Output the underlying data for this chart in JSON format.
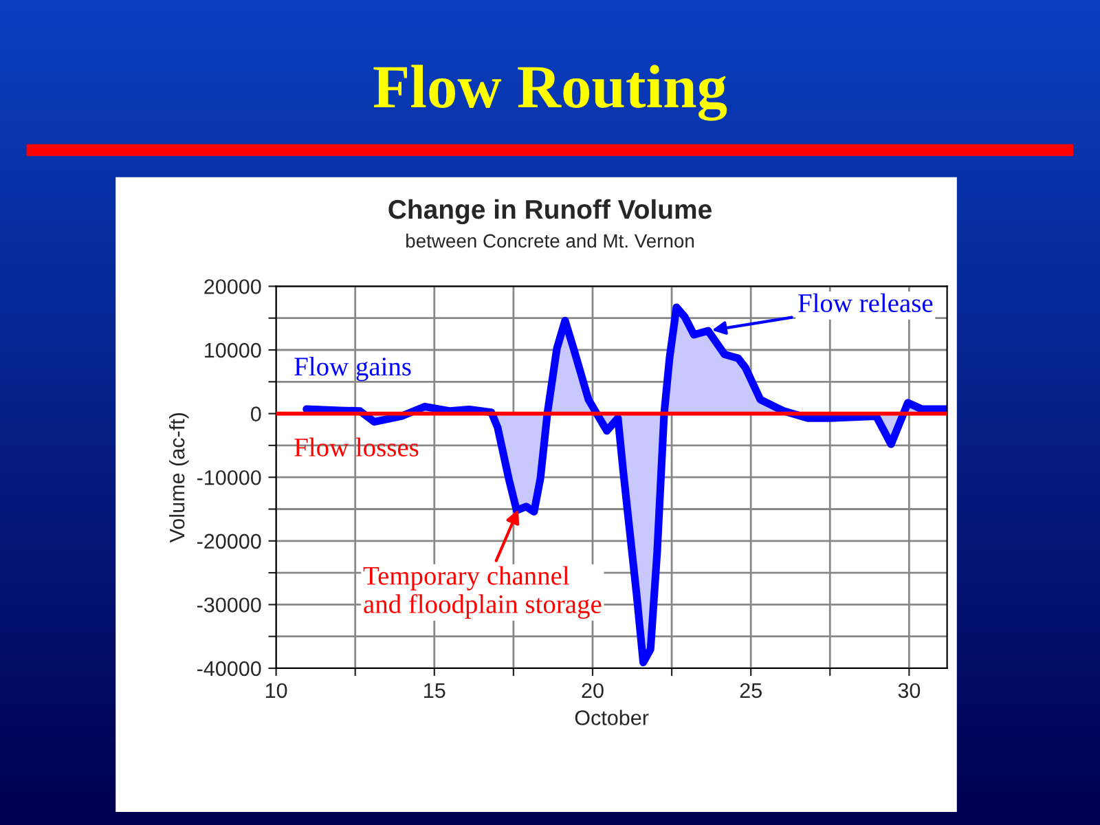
{
  "chart_data": {
    "type": "area",
    "title": "Change in Runoff Volume",
    "subtitle": "between Concrete and Mt. Vernon",
    "xlabel": "October",
    "ylabel": "Volume (ac-ft)",
    "x": [
      10.96,
      12.0,
      12.65,
      13.1,
      13.96,
      14.7,
      15.5,
      16.1,
      16.8,
      17.0,
      17.35,
      17.6,
      17.9,
      18.15,
      18.35,
      18.57,
      18.87,
      19.13,
      19.4,
      19.87,
      20.45,
      20.8,
      20.96,
      21.4,
      21.6,
      21.83,
      22.04,
      22.26,
      22.43,
      22.65,
      22.91,
      23.2,
      23.65,
      24.17,
      24.6,
      24.83,
      25.3,
      26.04,
      26.8,
      27.5,
      28.96,
      29.43,
      29.96,
      30.4,
      31.2
    ],
    "series": [
      {
        "color": "#0000ff",
        "values": [
          700,
          500,
          400,
          -1300,
          -400,
          1100,
          400,
          650,
          200,
          -2200,
          -10200,
          -15200,
          -14600,
          -15400,
          -10200,
          0,
          10200,
          14600,
          10200,
          2200,
          -2700,
          -700,
          -8700,
          -28900,
          -39100,
          -37000,
          -21700,
          0,
          8700,
          16700,
          15200,
          12400,
          13000,
          9300,
          8700,
          7200,
          2200,
          400,
          -700,
          -700,
          -400,
          -4800,
          1700,
          700,
          700
        ]
      }
    ],
    "xlim": [
      10,
      31.2
    ],
    "xticks": [
      10,
      {
        "value": 12.5,
        "label": null
      },
      15,
      {
        "value": 17.5,
        "label": null
      },
      20,
      {
        "value": 22.5,
        "label": null
      },
      25,
      {
        "value": 27.5,
        "label": null
      },
      30
    ],
    "ylim": [
      -40000,
      20000
    ],
    "yticks": [
      -40000,
      {
        "value": -35000,
        "label": null
      },
      -30000,
      {
        "value": -25000,
        "label": null
      },
      -20000,
      {
        "value": -15000,
        "label": null
      },
      -10000,
      {
        "value": -5000,
        "label": null
      },
      0,
      {
        "value": 5000,
        "label": null
      },
      10000,
      {
        "value": 15000,
        "label": null
      },
      20000
    ],
    "grid": true,
    "legend": false,
    "ref_lines": [
      {
        "axis": "y",
        "value": 0,
        "color": "#ff0000",
        "line_style": "solid"
      }
    ],
    "annotations": [
      "Flow Routing",
      "Flow gains",
      "Flow losses",
      {
        "text": "Flow release",
        "x": 23.65,
        "y": 13000
      },
      {
        "text": "Temporary channel\nand floodplain storage",
        "x": 17.7,
        "y": -14500
      }
    ]
  }
}
